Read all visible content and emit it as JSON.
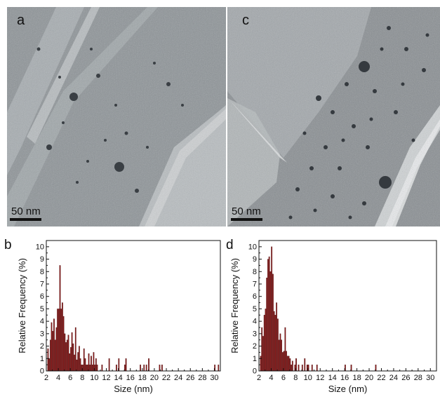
{
  "panels": {
    "a": {
      "letter": "a",
      "scale_label": "50 nm"
    },
    "c": {
      "letter": "c",
      "scale_label": "50 nm"
    }
  },
  "chart_data": [
    {
      "panel_letter": "b",
      "type": "bar",
      "xlabel": "Size (nm)",
      "ylabel": "Relative Frequency (%)",
      "xlim": [
        2,
        31
      ],
      "ylim": [
        0,
        10.5
      ],
      "xticks": [
        2,
        4,
        6,
        8,
        10,
        12,
        14,
        16,
        18,
        20,
        22,
        24,
        26,
        28,
        30
      ],
      "yticks": [
        0,
        1,
        2,
        3,
        4,
        5,
        6,
        7,
        8,
        9,
        10
      ],
      "color": "#8b1a1a",
      "bin_width": 0.2,
      "x": [
        2.3,
        2.5,
        2.7,
        2.9,
        3.1,
        3.3,
        3.5,
        3.7,
        3.9,
        4.1,
        4.3,
        4.5,
        4.7,
        4.9,
        5.1,
        5.3,
        5.5,
        5.7,
        5.9,
        6.1,
        6.3,
        6.5,
        6.7,
        6.9,
        7.1,
        7.3,
        7.5,
        7.7,
        7.9,
        8.1,
        8.3,
        8.5,
        8.7,
        8.9,
        9.1,
        9.3,
        9.5,
        9.7,
        9.9,
        10.1,
        10.3,
        10.5,
        11.3,
        12.5,
        13.7,
        14.1,
        15.1,
        15.3,
        17.7,
        18.3,
        18.7,
        19.1,
        20.9,
        21.3,
        30.1,
        30.7
      ],
      "values": [
        1.8,
        1.0,
        2.5,
        3.9,
        3.2,
        4.2,
        2.5,
        3.5,
        5.0,
        5.0,
        8.5,
        5.0,
        5.5,
        4.4,
        3.0,
        2.3,
        2.5,
        2.9,
        1.4,
        1.9,
        3.1,
        2.2,
        1.3,
        3.5,
        0.9,
        1.5,
        2.0,
        1.0,
        0.5,
        0.5,
        1.8,
        1.0,
        0.5,
        0.5,
        1.4,
        0.5,
        1.2,
        0.5,
        1.5,
        0.5,
        1.0,
        0.5,
        0.5,
        1.0,
        0.5,
        1.0,
        0.5,
        1.0,
        0.5,
        0.5,
        0.5,
        1.0,
        0.5,
        0.5,
        0.5,
        0.5
      ]
    },
    {
      "panel_letter": "d",
      "type": "bar",
      "xlabel": "Size (nm)",
      "ylabel": "Relative Frequency (%)",
      "xlim": [
        2,
        31
      ],
      "ylim": [
        0,
        10.5
      ],
      "xticks": [
        2,
        4,
        6,
        8,
        10,
        12,
        14,
        16,
        18,
        20,
        22,
        24,
        26,
        28,
        30
      ],
      "yticks": [
        0,
        1,
        2,
        3,
        4,
        5,
        6,
        7,
        8,
        9,
        10
      ],
      "color": "#8b1a1a",
      "bin_width": 0.2,
      "x": [
        2.3,
        2.5,
        2.7,
        2.9,
        3.1,
        3.3,
        3.5,
        3.7,
        3.9,
        4.1,
        4.3,
        4.5,
        4.7,
        4.9,
        5.1,
        5.3,
        5.5,
        5.7,
        5.9,
        6.1,
        6.3,
        6.5,
        6.7,
        6.9,
        7.1,
        7.3,
        7.5,
        7.9,
        8.1,
        8.5,
        9.1,
        9.5,
        9.9,
        10.1,
        10.7,
        11.5,
        16.1,
        17.1,
        21.1
      ],
      "values": [
        1.2,
        3.5,
        2.8,
        4.5,
        5.0,
        7.5,
        9.0,
        9.2,
        8.0,
        10.0,
        7.8,
        4.8,
        4.5,
        5.5,
        4.2,
        2.5,
        3.0,
        2.5,
        1.5,
        1.6,
        3.5,
        1.6,
        1.2,
        1.2,
        1.0,
        0.5,
        0.8,
        0.5,
        1.0,
        0.5,
        0.5,
        1.0,
        0.5,
        0.5,
        0.5,
        0.5,
        0.5,
        0.5,
        0.5
      ]
    }
  ]
}
